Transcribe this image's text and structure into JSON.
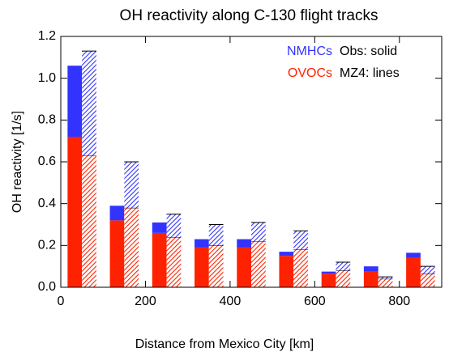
{
  "chart_data": {
    "type": "bar",
    "title": "OH reactivity along C-130 flight tracks",
    "x_label": "Distance from Mexico City [km]",
    "y_label": "OH reactivity [1/s]",
    "x": [
      50,
      150,
      250,
      350,
      450,
      550,
      650,
      750,
      850
    ],
    "series": [
      {
        "name": "OVOCs",
        "color": "#ff2200",
        "values": [
          0.72,
          0.32,
          0.26,
          0.19,
          0.19,
          0.15,
          0.065,
          0.075,
          0.14
        ],
        "model_values": [
          0.63,
          0.38,
          0.24,
          0.2,
          0.22,
          0.18,
          0.08,
          0.04,
          0.065
        ]
      },
      {
        "name": "NMHCs",
        "color": "#3333ff",
        "values": [
          0.34,
          0.07,
          0.05,
          0.04,
          0.04,
          0.02,
          0.01,
          0.025,
          0.025
        ],
        "model_values": [
          0.5,
          0.22,
          0.11,
          0.1,
          0.09,
          0.09,
          0.04,
          0.01,
          0.035
        ]
      }
    ],
    "legend_notes": [
      "Obs: solid",
      "MZ4: lines"
    ],
    "xlim": [
      0,
      900
    ],
    "xticks": [
      0,
      200,
      400,
      600,
      800
    ],
    "ylim": [
      0,
      1.2
    ],
    "yticks": [
      {
        "value": 0,
        "label": "0.0"
      },
      0.2,
      0.4,
      0.6,
      0.8,
      {
        "value": 1,
        "label": "1.0"
      },
      1.2
    ]
  }
}
